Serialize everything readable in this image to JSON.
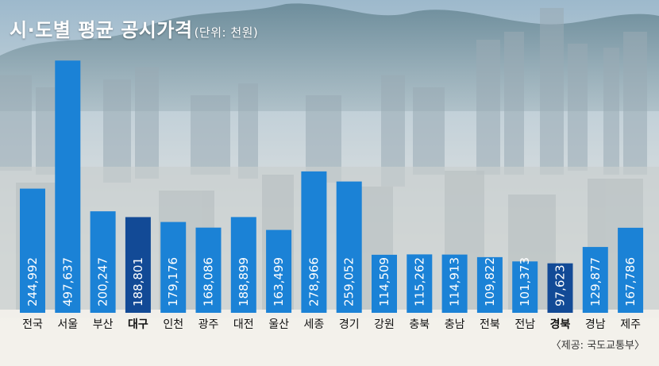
{
  "header": {
    "title": "시·도별 평균 공시가격",
    "unit": "(단위: 천원)"
  },
  "source": "〈제공: 국도교통부〉",
  "chart_data": {
    "type": "bar",
    "title": "시·도별 평균 공시가격",
    "unit": "천원",
    "ylim": [
      0,
      520000
    ],
    "grid": false,
    "legend": "none",
    "categories": [
      "전국",
      "서울",
      "부산",
      "대구",
      "인천",
      "광주",
      "대전",
      "울산",
      "세종",
      "경기",
      "강원",
      "충북",
      "충남",
      "전북",
      "전남",
      "경북",
      "경남",
      "제주"
    ],
    "values": [
      244992,
      497637,
      200247,
      188801,
      179176,
      168086,
      188899,
      163499,
      278966,
      259052,
      114509,
      115262,
      114913,
      109822,
      101373,
      97623,
      129877,
      167786
    ],
    "value_labels": [
      "244,992",
      "497,637",
      "200,247",
      "188,801",
      "179,176",
      "168,086",
      "188,899",
      "163,499",
      "278,966",
      "259,052",
      "114,509",
      "115,262",
      "114,913",
      "109,822",
      "101,373",
      "97,623",
      "129,877",
      "167,786"
    ],
    "highlighted": [
      "대구",
      "경북"
    ],
    "colors": {
      "bar": "#1b82d6",
      "highlight": "#124a96",
      "label": "#111111",
      "value_text": "#ffffff"
    }
  }
}
